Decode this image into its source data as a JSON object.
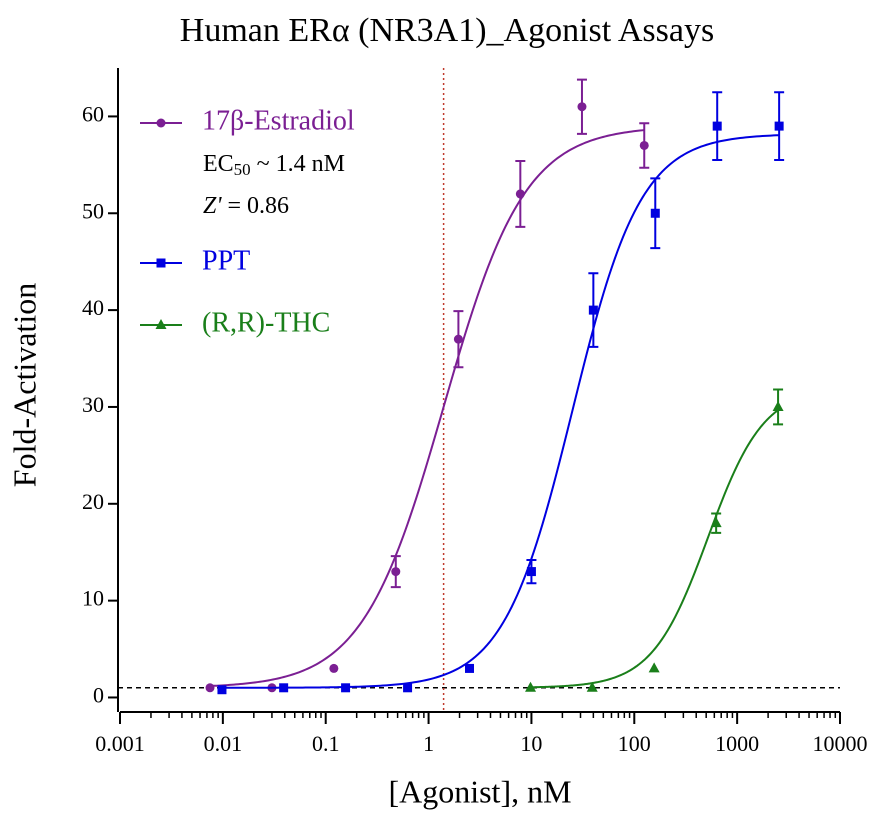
{
  "chart_data": {
    "type": "scatter",
    "title": "Human ERα (NR3A1)_Agonist Assays",
    "xlabel": "[Agonist], nM",
    "ylabel": "Fold-Activation",
    "xscale": "log",
    "xlim": [
      0.001,
      10000
    ],
    "ylim": [
      -1.5,
      65
    ],
    "xticks": [
      0.001,
      0.01,
      0.1,
      1,
      10,
      100,
      1000,
      10000
    ],
    "yticks": [
      0,
      10,
      20,
      30,
      40,
      50,
      60
    ],
    "baseline": 1,
    "legend": "upper left",
    "annotation": {
      "ec": "EC",
      "ec_sub": "50",
      "ec_rest": " ~ 1.4 nM",
      "z": "Z'",
      "z_rest": " = 0.86"
    },
    "series": [
      {
        "name": "17β-Estradiol",
        "color": "#7b1f93",
        "marker": "circle",
        "x": [
          0.0075,
          0.03,
          0.12,
          0.48,
          1.95,
          7.8,
          31,
          125
        ],
        "values": [
          1,
          1,
          3,
          13,
          37,
          52,
          61,
          57
        ],
        "errors": [
          0,
          0,
          0,
          1.6,
          2.9,
          3.4,
          2.8,
          2.3
        ],
        "fit": {
          "bottom": 1,
          "top": 59,
          "ec50": 1.4,
          "hill": 1.1
        }
      },
      {
        "name": "PPT",
        "color": "#0000e0",
        "marker": "square",
        "x": [
          0.0098,
          0.039,
          0.156,
          0.625,
          2.5,
          10,
          40,
          160,
          640,
          2560
        ],
        "values": [
          0.8,
          1,
          1,
          1,
          3,
          13,
          40,
          50,
          59,
          59
        ],
        "errors": [
          0,
          0,
          0,
          0,
          0,
          1.2,
          3.8,
          3.6,
          3.5,
          3.5
        ],
        "fit": {
          "bottom": 1,
          "top": 58.2,
          "ec50": 25,
          "hill": 1.3
        }
      },
      {
        "name": "(R,R)-THC",
        "color": "#1a7f1a",
        "marker": "triangle",
        "x": [
          9.8,
          39,
          156,
          625,
          2500
        ],
        "values": [
          1,
          1,
          3,
          18,
          30
        ],
        "errors": [
          0,
          0,
          0,
          1,
          1.8
        ],
        "fit": {
          "bottom": 1,
          "top": 32,
          "ec50": 520,
          "hill": 1.6
        }
      }
    ]
  }
}
